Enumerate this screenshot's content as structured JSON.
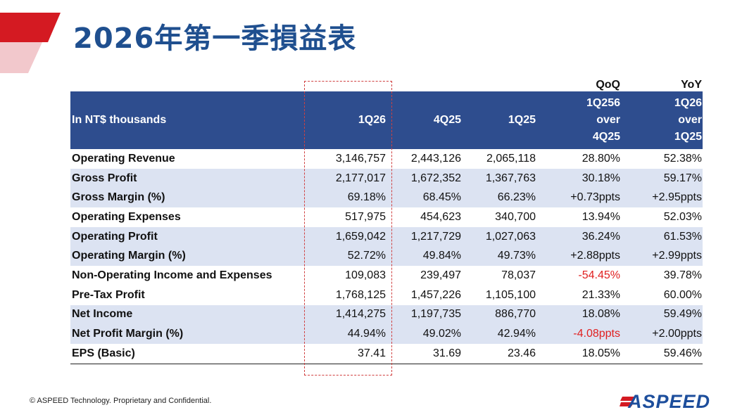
{
  "header": {
    "title": "2026年第一季損益表"
  },
  "table": {
    "group_labels": [
      "QoQ",
      "YoY"
    ],
    "columns": [
      [
        "In NT$ thousands"
      ],
      [
        "1Q26"
      ],
      [
        "4Q25"
      ],
      [
        "1Q25"
      ],
      [
        "1Q256",
        "over",
        "4Q25"
      ],
      [
        "1Q26",
        "over",
        "1Q25"
      ]
    ],
    "rows": [
      [
        "Operating Revenue",
        "3,146,757",
        "2,443,126",
        "2,065,118",
        "28.80%",
        "52.38%"
      ],
      [
        "Gross Profit",
        "2,177,017",
        "1,672,352",
        "1,367,763",
        "30.18%",
        "59.17%"
      ],
      [
        "Gross Margin (%)",
        "69.18%",
        "68.45%",
        "66.23%",
        "+0.73ppts",
        "+2.95ppts"
      ],
      [
        "Operating Expenses",
        "517,975",
        "454,623",
        "340,700",
        "13.94%",
        "52.03%"
      ],
      [
        "Operating Profit",
        "1,659,042",
        "1,217,729",
        "1,027,063",
        "36.24%",
        "61.53%"
      ],
      [
        "Operating Margin (%)",
        "52.72%",
        "49.84%",
        "49.73%",
        "+2.88ppts",
        "+2.99ppts"
      ],
      [
        "Non-Operating Income and Expenses",
        "109,083",
        "239,497",
        "78,037",
        "-54.45%",
        "39.78%"
      ],
      [
        "Pre-Tax Profit",
        "1,768,125",
        "1,457,226",
        "1,105,100",
        "21.33%",
        "60.00%"
      ],
      [
        "Net Income",
        "1,414,275",
        "1,197,735",
        "886,770",
        "18.08%",
        "59.49%"
      ],
      [
        "Net Profit Margin (%)",
        "44.94%",
        "49.02%",
        "42.94%",
        "-4.08ppts",
        "+2.00ppts"
      ],
      [
        "EPS (Basic)",
        "37.41",
        "31.69",
        "23.46",
        "18.05%",
        "59.46%"
      ]
    ]
  },
  "footer": {
    "copyright": "© ASPEED Technology. Proprietary and Confidential.",
    "logo": "ASPEED"
  }
}
